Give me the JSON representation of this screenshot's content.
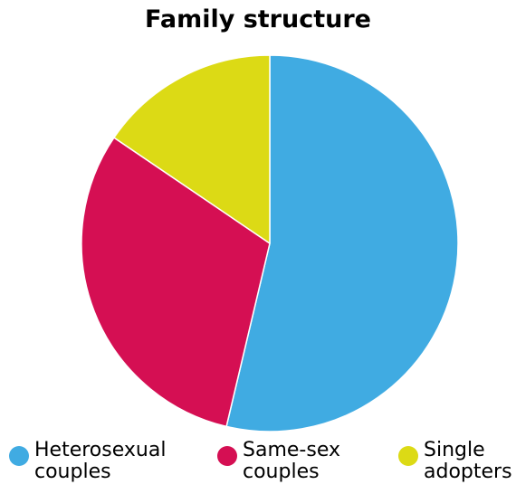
{
  "chart_data": {
    "type": "pie",
    "title": "Family structure",
    "categories": [
      "Heterosexual couples",
      "Same-sex couples",
      "Single adopters"
    ],
    "values": [
      53.7,
      30.8,
      15.5
    ],
    "colors": [
      "#40ABE2",
      "#D50F53",
      "#DCDA15"
    ],
    "legend_position": "bottom"
  }
}
